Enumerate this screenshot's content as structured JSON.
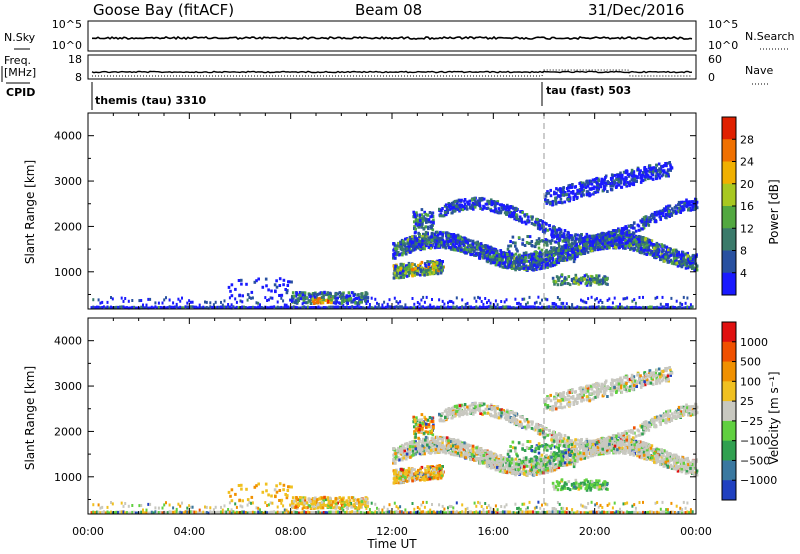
{
  "header": {
    "station": "Goose Bay (fitACF)",
    "beam": "Beam 08",
    "date": "31/Dec/2016"
  },
  "top_panels": {
    "nsky_label": "N.Sky",
    "nsearch_label": "N.Search",
    "nsky_ticks": [
      "10^5",
      "10^0"
    ],
    "nsearch_ticks": [
      "10^5",
      "10^0"
    ],
    "freq_label_1": "Freq.",
    "freq_label_2": "[MHz]",
    "freq_ticks": [
      "18",
      "8"
    ],
    "nave_label": "Nave",
    "nave_ticks": [
      "60",
      "0"
    ],
    "cpid_label": "CPID",
    "cpid_segments": [
      {
        "label": "themis (tau) 3310",
        "start_hour": 0
      },
      {
        "label": "tau (fast) 503",
        "start_hour": 18
      }
    ]
  },
  "chart_data": [
    {
      "type": "heatmap",
      "title": "",
      "ylabel": "Slant Range [km]",
      "xlabel": "",
      "xlim": [
        0,
        24
      ],
      "ylim": [
        180,
        4500
      ],
      "yticks": [
        "1000",
        "2000",
        "3000",
        "4000"
      ],
      "colorbar_label": "Power [dB]",
      "colorbar_ticks": [
        "4",
        "8",
        "12",
        "16",
        "20",
        "24",
        "28"
      ],
      "colorbar_range": [
        0,
        30
      ],
      "colors": [
        "#1a1aff",
        "#2850a0",
        "#3a7a6a",
        "#52a840",
        "#a8c820",
        "#f0b000",
        "#f07000",
        "#e02000"
      ],
      "cursor_hour": 18
    },
    {
      "type": "heatmap",
      "title": "",
      "ylabel": "Slant Range [km]",
      "xlabel": "Time UT",
      "xlim": [
        0,
        24
      ],
      "ylim": [
        180,
        4500
      ],
      "yticks": [
        "1000",
        "2000",
        "3000",
        "4000"
      ],
      "xticks": [
        "00:00",
        "04:00",
        "08:00",
        "12:00",
        "16:00",
        "20:00",
        "00:00"
      ],
      "colorbar_label": "Velocity [m s⁻¹]",
      "colorbar_ticks": [
        "1000",
        "500",
        "100",
        "25",
        "−25",
        "−100",
        "−500",
        "−1000"
      ],
      "colors": [
        "#2040c0",
        "#3a78a0",
        "#30a050",
        "#60d040",
        "#c8c8c0",
        "#f0c020",
        "#f09000",
        "#f05000",
        "#e01010"
      ],
      "cursor_hour": 18
    }
  ]
}
